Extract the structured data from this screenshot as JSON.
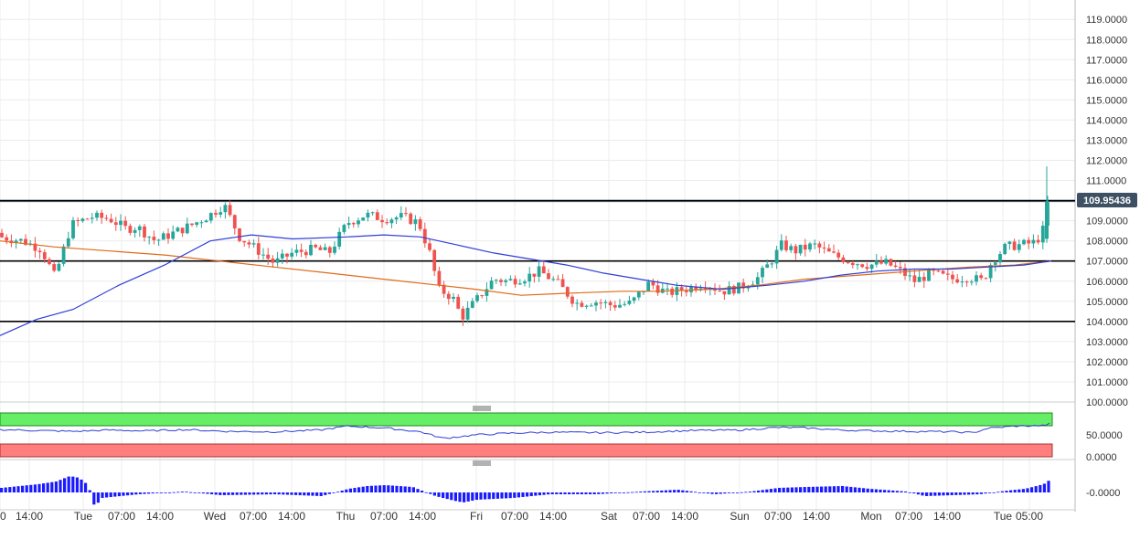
{
  "chart_data": [
    {
      "type": "candlestick",
      "title": "",
      "y_ticks": [
        "100.0000",
        "101.0000",
        "102.0000",
        "103.0000",
        "104.0000",
        "105.0000",
        "106.0000",
        "107.0000",
        "108.0000",
        "109.0000",
        "110.0000",
        "111.0000",
        "112.0000",
        "113.0000",
        "114.0000",
        "115.0000",
        "116.0000",
        "117.0000",
        "118.0000",
        "119.0000"
      ],
      "ylim": [
        100,
        119.6
      ],
      "x_ticks": [
        "0",
        "14:00",
        "Tue",
        "07:00",
        "14:00",
        "Wed",
        "07:00",
        "14:00",
        "Thu",
        "07:00",
        "14:00",
        "Fri",
        "07:00",
        "14:00",
        "Sat",
        "07:00",
        "14:00",
        "Sun",
        "07:00",
        "14:00",
        "Mon",
        "07:00",
        "14:00",
        "Tue",
        "05:00"
      ],
      "current_price": "109.95436",
      "current_price_value": 109.954,
      "horizontal_levels": [
        110.0,
        107.0,
        104.0
      ],
      "colors": {
        "up": "#26a69a",
        "down": "#ef5350",
        "ma_fast": "#2f3fd6",
        "ma_slow": "#e06a1a",
        "level": "#000000",
        "badge": "#3d5064"
      },
      "candles_close_anchors": [
        [
          0,
          108.2
        ],
        [
          25,
          108.0
        ],
        [
          45,
          107.6
        ],
        [
          60,
          106.2
        ],
        [
          78,
          108.8
        ],
        [
          100,
          109.2
        ],
        [
          120,
          109.1
        ],
        [
          138,
          108.6
        ],
        [
          150,
          108.7
        ],
        [
          170,
          108.0
        ],
        [
          190,
          108.4
        ],
        [
          210,
          108.8
        ],
        [
          230,
          109.3
        ],
        [
          245,
          109.8
        ],
        [
          262,
          108.2
        ],
        [
          280,
          107.6
        ],
        [
          300,
          106.9
        ],
        [
          320,
          107.4
        ],
        [
          345,
          107.6
        ],
        [
          360,
          107.4
        ],
        [
          380,
          108.9
        ],
        [
          400,
          109.3
        ],
        [
          420,
          109.1
        ],
        [
          440,
          109.2
        ],
        [
          458,
          108.9
        ],
        [
          470,
          107.4
        ],
        [
          480,
          105.6
        ],
        [
          495,
          105.2
        ],
        [
          505,
          104.2
        ],
        [
          520,
          105.0
        ],
        [
          540,
          106.1
        ],
        [
          555,
          106.0
        ],
        [
          575,
          106.2
        ],
        [
          590,
          106.5
        ],
        [
          610,
          105.9
        ],
        [
          630,
          104.9
        ],
        [
          650,
          105.0
        ],
        [
          670,
          104.8
        ],
        [
          690,
          104.9
        ],
        [
          710,
          105.9
        ],
        [
          730,
          105.4
        ],
        [
          750,
          105.6
        ],
        [
          770,
          105.9
        ],
        [
          790,
          105.5
        ],
        [
          810,
          105.7
        ],
        [
          830,
          106.2
        ],
        [
          845,
          107.1
        ],
        [
          855,
          107.8
        ],
        [
          870,
          107.5
        ],
        [
          890,
          107.8
        ],
        [
          910,
          107.3
        ],
        [
          930,
          107.0
        ],
        [
          950,
          106.8
        ],
        [
          970,
          106.9
        ],
        [
          985,
          106.5
        ],
        [
          1000,
          106.0
        ],
        [
          1020,
          106.4
        ],
        [
          1040,
          106.1
        ],
        [
          1060,
          106.2
        ],
        [
          1075,
          106.0
        ],
        [
          1085,
          107.0
        ],
        [
          1100,
          107.7
        ],
        [
          1115,
          107.8
        ],
        [
          1130,
          107.9
        ],
        [
          1140,
          108.3
        ],
        [
          1145,
          109.8
        ],
        [
          1150,
          109.95
        ]
      ],
      "ma_fast": [
        [
          0,
          103.3
        ],
        [
          40,
          104.1
        ],
        [
          80,
          104.6
        ],
        [
          130,
          105.8
        ],
        [
          180,
          106.8
        ],
        [
          230,
          108.0
        ],
        [
          275,
          108.3
        ],
        [
          320,
          108.1
        ],
        [
          380,
          108.2
        ],
        [
          420,
          108.3
        ],
        [
          460,
          108.2
        ],
        [
          500,
          107.8
        ],
        [
          540,
          107.4
        ],
        [
          580,
          107.1
        ],
        [
          620,
          106.8
        ],
        [
          660,
          106.4
        ],
        [
          700,
          106.1
        ],
        [
          740,
          105.8
        ],
        [
          790,
          105.6
        ],
        [
          840,
          105.8
        ],
        [
          880,
          106.0
        ],
        [
          920,
          106.3
        ],
        [
          960,
          106.5
        ],
        [
          1000,
          106.6
        ],
        [
          1040,
          106.6
        ],
        [
          1080,
          106.7
        ],
        [
          1120,
          106.8
        ],
        [
          1150,
          107.0
        ]
      ],
      "ma_slow": [
        [
          0,
          108.0
        ],
        [
          60,
          107.7
        ],
        [
          120,
          107.5
        ],
        [
          180,
          107.3
        ],
        [
          240,
          107.0
        ],
        [
          300,
          106.7
        ],
        [
          360,
          106.4
        ],
        [
          420,
          106.1
        ],
        [
          480,
          105.8
        ],
        [
          520,
          105.6
        ],
        [
          570,
          105.3
        ],
        [
          620,
          105.4
        ],
        [
          680,
          105.5
        ],
        [
          720,
          105.5
        ],
        [
          780,
          105.6
        ],
        [
          830,
          105.8
        ],
        [
          880,
          106.1
        ],
        [
          940,
          106.3
        ],
        [
          1000,
          106.5
        ],
        [
          1060,
          106.7
        ],
        [
          1110,
          106.8
        ],
        [
          1150,
          107.0
        ]
      ]
    },
    {
      "type": "line",
      "title": "",
      "y_ticks": [
        "50.0000",
        "0.0000"
      ],
      "ylim": [
        0,
        100
      ],
      "series": [
        {
          "values_anchor": [
            [
              0,
              62
            ],
            [
              40,
              60
            ],
            [
              80,
              58
            ],
            [
              120,
              61
            ],
            [
              160,
              59
            ],
            [
              200,
              62
            ],
            [
              250,
              58
            ],
            [
              300,
              57
            ],
            [
              350,
              61
            ],
            [
              380,
              70
            ],
            [
              420,
              66
            ],
            [
              460,
              57
            ],
            [
              485,
              42
            ],
            [
              520,
              50
            ],
            [
              560,
              54
            ],
            [
              600,
              56
            ],
            [
              660,
              55
            ],
            [
              700,
              56
            ],
            [
              760,
              60
            ],
            [
              810,
              61
            ],
            [
              850,
              67
            ],
            [
              880,
              66
            ],
            [
              920,
              61
            ],
            [
              960,
              59
            ],
            [
              1000,
              58
            ],
            [
              1040,
              57
            ],
            [
              1065,
              55
            ],
            [
              1080,
              65
            ],
            [
              1110,
              70
            ],
            [
              1140,
              71
            ],
            [
              1150,
              76
            ]
          ]
        }
      ],
      "zones": {
        "overbought_color": "#66ee66",
        "oversold_color": "#ff7f7f"
      }
    },
    {
      "type": "bar",
      "title": "",
      "y_ticks": [
        "-0.0000"
      ],
      "values_anchor": [
        [
          0,
          0.25
        ],
        [
          20,
          0.35
        ],
        [
          40,
          0.45
        ],
        [
          60,
          0.6
        ],
        [
          75,
          0.9
        ],
        [
          85,
          0.8
        ],
        [
          95,
          0.4
        ],
        [
          102,
          -0.8
        ],
        [
          110,
          -0.3
        ],
        [
          150,
          -0.1
        ],
        [
          200,
          0.05
        ],
        [
          240,
          -0.15
        ],
        [
          300,
          -0.1
        ],
        [
          350,
          -0.2
        ],
        [
          380,
          0.2
        ],
        [
          400,
          0.35
        ],
        [
          420,
          0.4
        ],
        [
          450,
          0.3
        ],
        [
          475,
          -0.2
        ],
        [
          495,
          -0.45
        ],
        [
          505,
          -0.55
        ],
        [
          520,
          -0.4
        ],
        [
          560,
          -0.3
        ],
        [
          600,
          -0.1
        ],
        [
          650,
          -0.1
        ],
        [
          700,
          0.05
        ],
        [
          740,
          0.15
        ],
        [
          780,
          -0.1
        ],
        [
          820,
          0.05
        ],
        [
          850,
          0.25
        ],
        [
          880,
          0.3
        ],
        [
          920,
          0.35
        ],
        [
          950,
          0.2
        ],
        [
          990,
          0.05
        ],
        [
          1010,
          -0.2
        ],
        [
          1040,
          -0.15
        ],
        [
          1070,
          -0.1
        ],
        [
          1100,
          0.1
        ],
        [
          1120,
          0.2
        ],
        [
          1140,
          0.45
        ],
        [
          1150,
          0.8
        ]
      ]
    }
  ]
}
